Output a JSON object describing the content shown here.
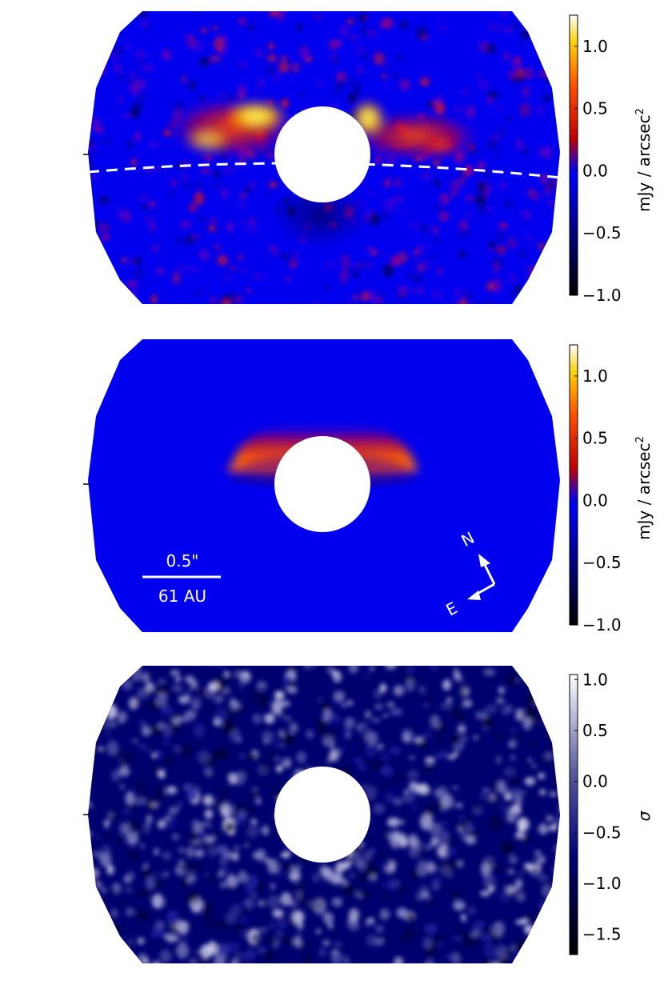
{
  "panels": [
    {
      "id": "data",
      "colormap": "gist_heat_blue",
      "colorbar": {
        "ticks": [
          "1.0",
          "0.5",
          "0.0",
          "−0.5",
          "−1.0"
        ],
        "tick_values": [
          1.0,
          0.5,
          0.0,
          -0.5,
          -1.0
        ],
        "range": [
          -1.0,
          1.25
        ],
        "label": "mJy / arcsec",
        "label_sup": "2"
      }
    },
    {
      "id": "model",
      "colormap": "gist_heat_blue",
      "colorbar": {
        "ticks": [
          "1.0",
          "0.5",
          "0.0",
          "−0.5",
          "−1.0"
        ],
        "tick_values": [
          1.0,
          0.5,
          0.0,
          -0.5,
          -1.0
        ],
        "range": [
          -1.0,
          1.25
        ],
        "label": "mJy / arcsec",
        "label_sup": "2"
      },
      "scale_bar": {
        "angular": "0.5\"",
        "physical": "61 AU"
      },
      "compass": {
        "north": "N",
        "east": "E"
      }
    },
    {
      "id": "residual",
      "colormap": "navy_white",
      "colorbar": {
        "ticks": [
          "1.0",
          "0.5",
          "0.0",
          "−0.5",
          "−1.0",
          "−1.5"
        ],
        "tick_values": [
          1.0,
          0.5,
          0.0,
          -0.5,
          -1.0,
          -1.5
        ],
        "range": [
          -1.7,
          1.05
        ],
        "label": "σ",
        "label_sup": ""
      }
    }
  ],
  "colors": {
    "background_blue": "#0000ee",
    "disk_red": "#ff2000",
    "disk_yellow": "#ffe000",
    "residual_navy": "#00006e",
    "mask": "#ffffff",
    "annotation": "#ffffff"
  }
}
